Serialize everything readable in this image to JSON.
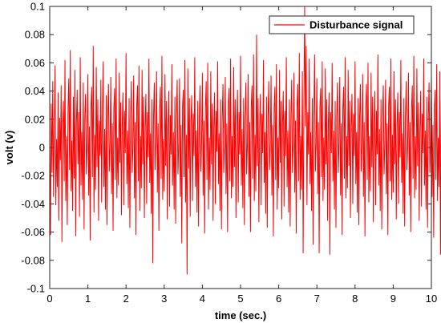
{
  "chart_data": {
    "type": "line",
    "xlabel": "time (sec.)",
    "ylabel": "volt (v)",
    "xlim": [
      0,
      10
    ],
    "ylim": [
      -0.1,
      0.1
    ],
    "x_ticks": [
      "0",
      "1",
      "2",
      "3",
      "4",
      "5",
      "6",
      "7",
      "8",
      "9",
      "10"
    ],
    "y_ticks": [
      "-0.1",
      "-0.08",
      "-0.06",
      "-0.04",
      "-0.02",
      "0",
      "0.02",
      "0.04",
      "0.06",
      "0.08",
      "0.1"
    ],
    "grid": false,
    "legend_position": "top-right",
    "series": [
      {
        "name": "Disturbance signal",
        "color": "#ff0000",
        "x_start": 0,
        "x_step": 0.02,
        "values": [
          0.004,
          -0.062,
          0.031,
          -0.018,
          0.047,
          -0.035,
          0.012,
          0.058,
          -0.041,
          0.006,
          -0.028,
          0.039,
          -0.052,
          0.021,
          -0.009,
          0.044,
          -0.067,
          0.015,
          0.033,
          -0.024,
          0.062,
          -0.038,
          0.008,
          -0.055,
          0.027,
          0.049,
          -0.016,
          0.069,
          -0.031,
          0.005,
          -0.045,
          0.036,
          -0.022,
          0.055,
          -0.063,
          0.018,
          0.041,
          -0.012,
          0.025,
          -0.049,
          0.064,
          -0.027,
          0.011,
          -0.037,
          0.046,
          -0.058,
          0.023,
          0.038,
          -0.019,
          0.003,
          0.052,
          -0.034,
          0.015,
          -0.066,
          0.029,
          0.043,
          -0.021,
          0.072,
          -0.046,
          0.009,
          -0.03,
          0.057,
          -0.014,
          0.034,
          -0.052,
          0.019,
          -0.006,
          0.048,
          -0.039,
          0.024,
          0.061,
          -0.028,
          0.013,
          -0.044,
          0.037,
          -0.055,
          0.021,
          0.045,
          -0.017,
          0.002,
          0.05,
          -0.033,
          0.017,
          -0.059,
          0.028,
          0.042,
          -0.023,
          0.063,
          -0.036,
          0.007,
          -0.027,
          0.053,
          -0.011,
          0.032,
          -0.048,
          0.016,
          0.039,
          -0.041,
          0.026,
          -0.004,
          0.067,
          -0.026,
          0.012,
          -0.043,
          0.035,
          -0.057,
          0.022,
          0.047,
          -0.018,
          0.001,
          0.051,
          -0.036,
          0.018,
          -0.062,
          0.03,
          0.044,
          -0.024,
          0.058,
          -0.045,
          0.008,
          -0.029,
          0.055,
          -0.012,
          0.036,
          -0.05,
          0.015,
          0.038,
          -0.04,
          0.025,
          -0.007,
          0.063,
          -0.025,
          0.01,
          -0.047,
          0.034,
          -0.082,
          0.021,
          0.046,
          -0.016,
          0.003,
          0.054,
          -0.032,
          0.017,
          -0.059,
          0.027,
          0.043,
          -0.022,
          0.065,
          -0.037,
          0.006,
          -0.031,
          0.052,
          -0.013,
          0.033,
          -0.051,
          0.014,
          0.04,
          -0.042,
          0.023,
          -0.005,
          0.059,
          -0.027,
          0.011,
          -0.044,
          0.036,
          -0.054,
          0.02,
          0.048,
          -0.019,
          0.002,
          0.049,
          -0.035,
          0.016,
          -0.068,
          0.029,
          0.041,
          -0.021,
          0.062,
          -0.039,
          0.009,
          -0.09,
          0.056,
          -0.015,
          0.035,
          -0.049,
          0.018,
          0.037,
          -0.038,
          0.024,
          -0.006,
          0.064,
          -0.028,
          0.012,
          -0.046,
          0.033,
          -0.056,
          0.022,
          0.044,
          -0.017,
          0.004,
          0.053,
          -0.034,
          0.019,
          -0.061,
          0.028,
          0.047,
          -0.023,
          0.06,
          -0.044,
          0.007,
          -0.03,
          0.054,
          -0.012,
          0.031,
          -0.052,
          0.015,
          0.039,
          -0.04,
          0.026,
          -0.003,
          0.061,
          -0.026,
          0.01,
          -0.045,
          0.034,
          -0.058,
          0.021,
          0.045,
          -0.018,
          0.001,
          0.05,
          -0.033,
          0.017,
          -0.06,
          0.031,
          0.042,
          -0.024,
          0.063,
          -0.036,
          0.008,
          -0.028,
          0.057,
          -0.014,
          0.034,
          -0.05,
          0.016,
          0.041,
          -0.039,
          0.025,
          -0.005,
          0.065,
          -0.027,
          0.013,
          -0.043,
          0.035,
          -0.055,
          0.023,
          0.046,
          -0.019,
          0.003,
          0.052,
          -0.035,
          0.018,
          -0.06,
          0.029,
          0.044,
          -0.022,
          0.066,
          -0.038,
          0.009,
          -0.031,
          0.08,
          -0.013,
          0.035,
          -0.053,
          0.014,
          0.038,
          -0.041,
          0.024,
          -0.004,
          0.062,
          -0.025,
          0.011,
          -0.047,
          0.036,
          -0.057,
          0.021,
          0.047,
          -0.016,
          0.002,
          0.051,
          -0.034,
          0.016,
          -0.063,
          0.028,
          0.043,
          -0.023,
          0.059,
          -0.044,
          0.007,
          -0.029,
          0.055,
          -0.011,
          0.033,
          -0.051,
          0.017,
          0.04,
          -0.042,
          0.026,
          -0.006,
          0.064,
          -0.028,
          0.012,
          -0.046,
          0.034,
          -0.056,
          0.022,
          0.048,
          -0.018,
          0.003,
          0.053,
          -0.032,
          0.019,
          -0.061,
          0.03,
          0.045,
          -0.024,
          0.067,
          -0.037,
          0.008,
          -0.03,
          0.054,
          -0.075,
          0.032,
          0.1,
          0.015,
          0.072,
          -0.041,
          0.025,
          -0.005,
          0.063,
          -0.026,
          0.011,
          -0.045,
          0.035,
          -0.069,
          0.02,
          0.066,
          -0.017,
          0.002,
          0.049,
          -0.033,
          0.018,
          -0.075,
          0.029,
          0.042,
          -0.021,
          0.061,
          -0.038,
          0.007,
          -0.03,
          0.056,
          -0.012,
          0.034,
          -0.052,
          0.016,
          0.039,
          -0.076,
          0.025,
          -0.004,
          0.06,
          -0.024,
          0.012,
          -0.044,
          0.033,
          -0.057,
          0.021,
          0.046,
          -0.018,
          0.003,
          0.05,
          -0.034,
          0.017,
          -0.062,
          0.028,
          0.043,
          -0.022,
          0.064,
          -0.036,
          0.008,
          -0.029,
          0.055,
          -0.013,
          0.033,
          -0.05,
          0.015,
          0.038,
          -0.04,
          0.024,
          -0.006,
          0.061,
          -0.026,
          0.011,
          -0.046,
          0.035,
          -0.055,
          0.022,
          0.045,
          -0.017,
          0.002,
          0.052,
          -0.035,
          0.018,
          -0.063,
          0.029,
          0.045,
          -0.023,
          0.06,
          -0.039,
          0.008,
          -0.031,
          0.053,
          -0.014,
          0.036,
          -0.053,
          0.016,
          0.04,
          -0.041,
          0.026,
          -0.005,
          0.066,
          -0.027,
          0.013,
          -0.045,
          0.034,
          -0.058,
          0.021,
          0.044,
          -0.019,
          0.001,
          0.048,
          -0.033,
          0.017,
          -0.062,
          0.03,
          0.043,
          -0.024,
          0.063,
          -0.037,
          0.009,
          -0.032,
          0.054,
          -0.012,
          0.034,
          -0.051,
          0.015,
          0.039,
          -0.04,
          0.025,
          -0.007,
          0.062,
          -0.025,
          0.01,
          -0.047,
          0.035,
          -0.056,
          0.022,
          0.047,
          -0.016,
          0.003,
          0.053,
          -0.034,
          0.018,
          -0.06,
          0.027,
          0.044,
          -0.022,
          0.065,
          -0.036,
          0.008,
          -0.03,
          0.056,
          -0.013,
          0.032,
          -0.052,
          0.014,
          0.04,
          -0.042,
          0.024,
          -0.004,
          0.063,
          -0.027,
          0.012,
          -0.044,
          0.036,
          -0.057,
          0.02,
          0.046,
          -0.018,
          0.003,
          0.051,
          -0.035,
          0.016,
          -0.064,
          0.029,
          0.041,
          -0.023,
          0.059,
          -0.038,
          0.007,
          -0.028,
          0.054,
          -0.076,
          0.033,
          -0.05,
          0.016,
          0.038,
          -0.041,
          0.071,
          -0.005,
          0.062,
          -0.026,
          0.011,
          -0.046,
          0.034,
          -0.055,
          0.021,
          0.045,
          -0.017,
          0.002,
          0.052,
          -0.033,
          0.018,
          -0.061
        ]
      }
    ]
  }
}
